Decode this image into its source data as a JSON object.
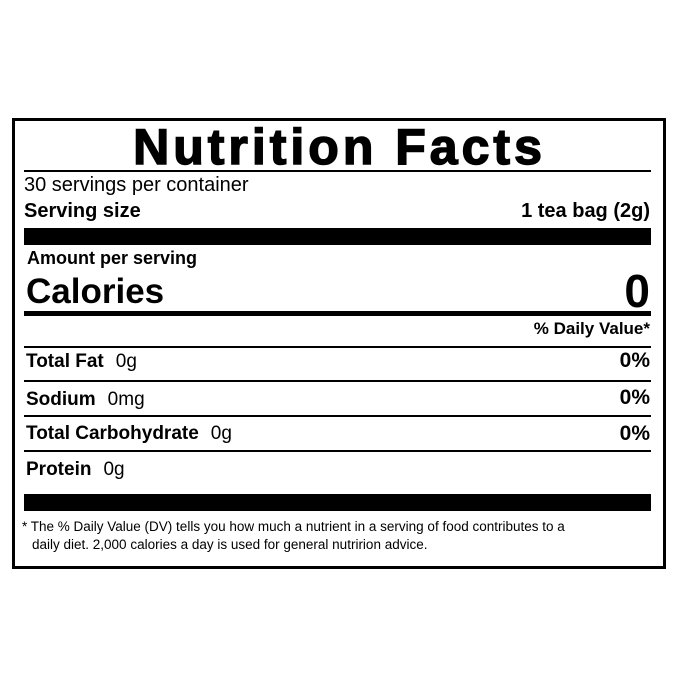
{
  "title": "Nutrition Facts",
  "servings_per_container": "30 servings per container",
  "serving_size_label": "Serving size",
  "serving_size_value": "1 tea bag (2g)",
  "amount_per_serving": "Amount per serving",
  "calories_label": "Calories",
  "calories_value": "0",
  "daily_value_header": "% Daily Value*",
  "nutrients": [
    {
      "name": "Total Fat",
      "amount": "0g",
      "dv": "0%"
    },
    {
      "name": "Sodium",
      "amount": "0mg",
      "dv": "0%"
    },
    {
      "name": "Total Carbohydrate",
      "amount": "0g",
      "dv": "0%"
    },
    {
      "name": "Protein",
      "amount": "0g",
      "dv": ""
    }
  ],
  "footnote_line1": "* The % Daily Value (DV) tells you how much a nutrient in a serving of food contributes to a",
  "footnote_line2": "daily diet. 2,000 calories a day is used for general nutririon advice."
}
